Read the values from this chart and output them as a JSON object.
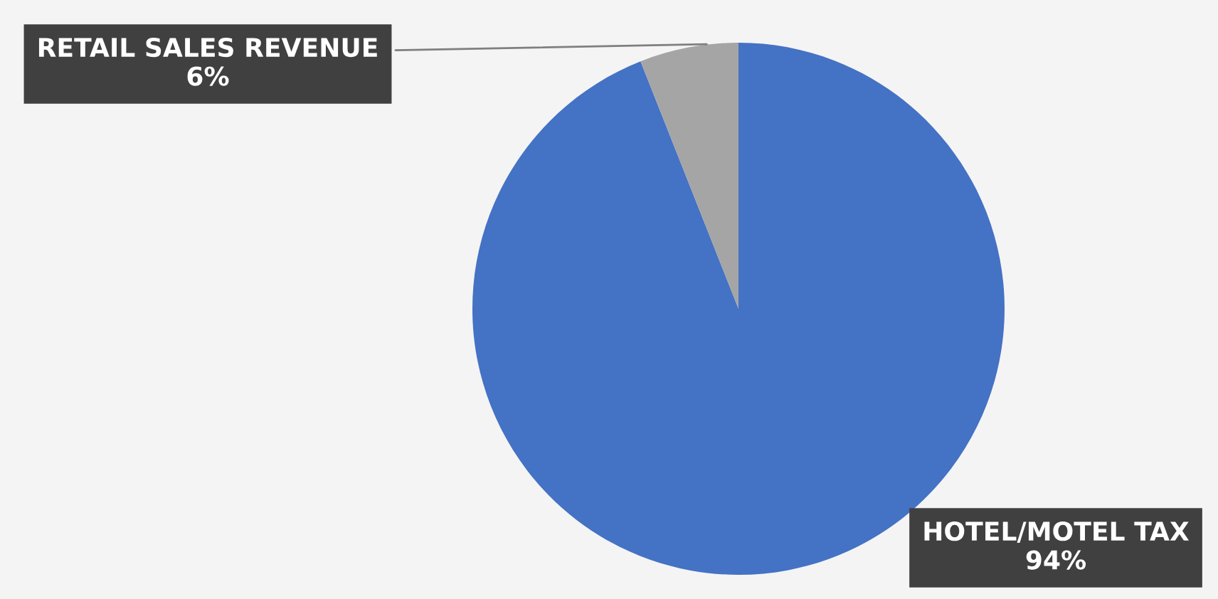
{
  "chart_data": {
    "type": "pie",
    "categories": [
      "HOTEL/MOTEL TAX",
      "RETAIL SALES REVENUE"
    ],
    "values": [
      94,
      6
    ],
    "colors": [
      "#4472c4",
      "#a5a5a5"
    ],
    "value_labels": [
      "94%",
      "6%"
    ],
    "legend": false
  }
}
